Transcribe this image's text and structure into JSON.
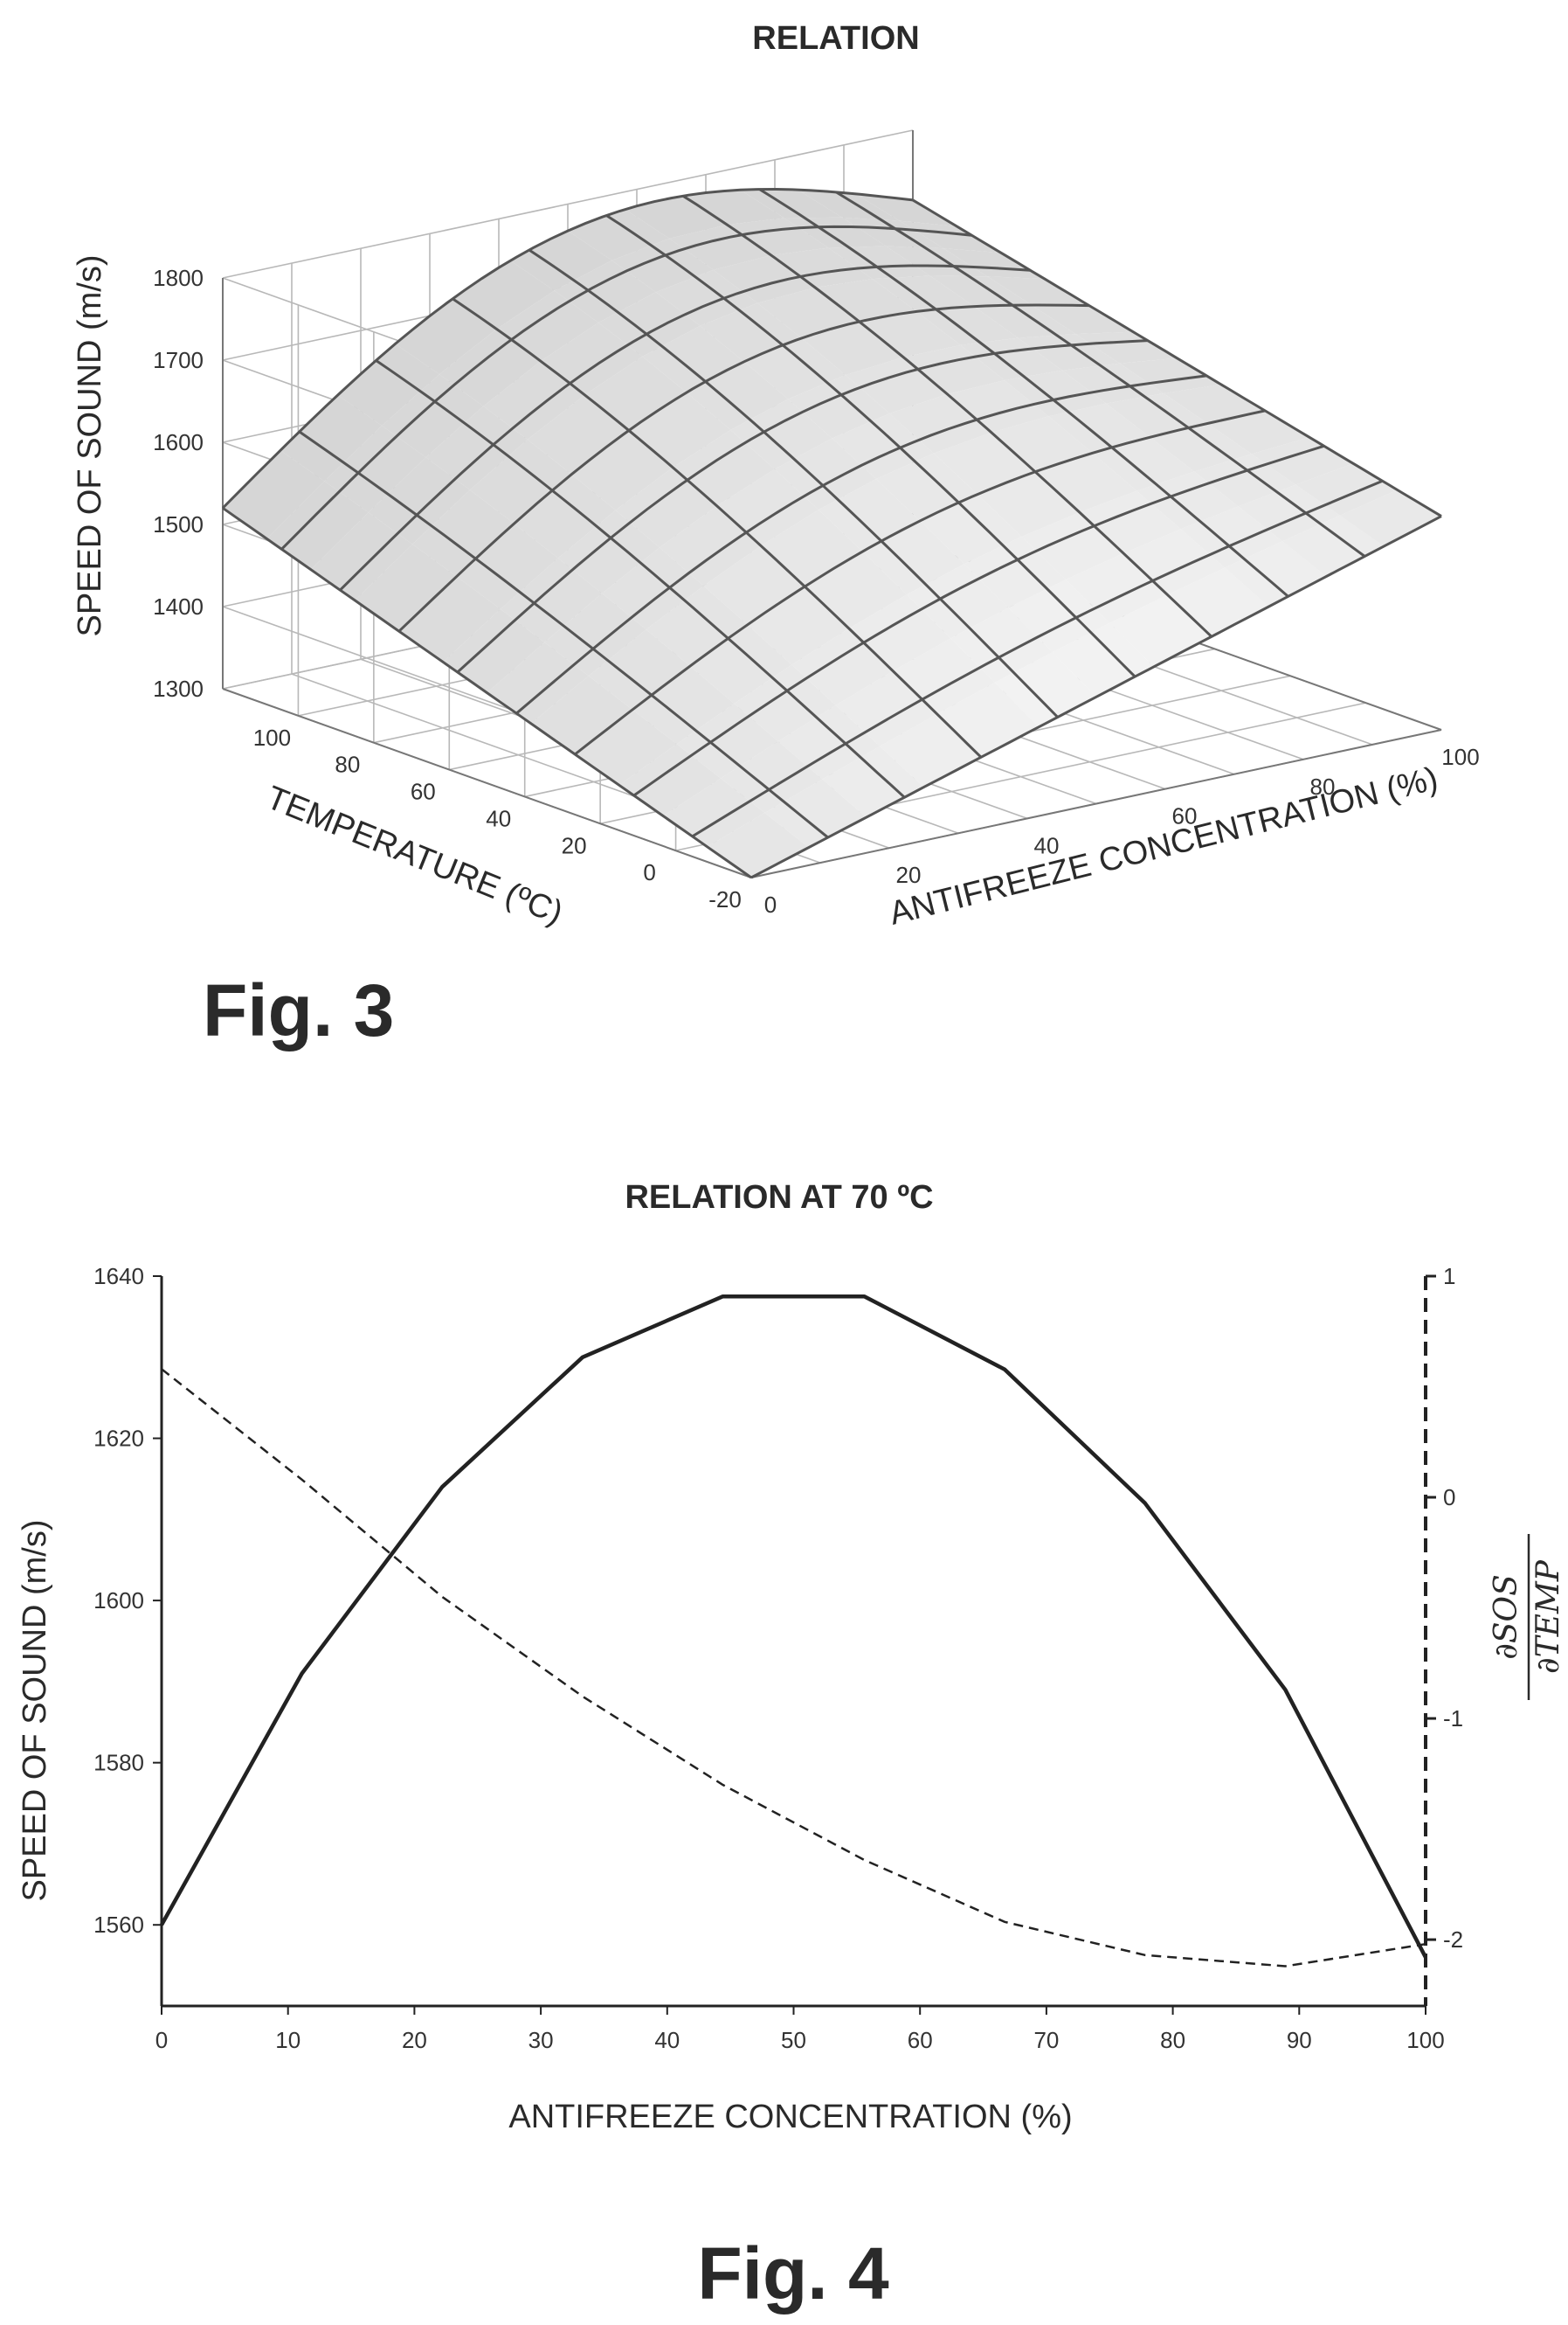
{
  "chart_data": [
    {
      "type": "surface",
      "title": "RELATION",
      "xlabel": "ANTIFREEZE CONCENTRATION (%)",
      "ylabel": "TEMPERATURE (ºC)",
      "zlabel": "SPEED OF SOUND (m/s)",
      "x_ticks": [
        "0",
        "20",
        "40",
        "60",
        "80",
        "100"
      ],
      "y_ticks": [
        "-20",
        "0",
        "20",
        "40",
        "60",
        "80",
        "100"
      ],
      "z_ticks": [
        "1300",
        "1400",
        "1500",
        "1600",
        "1700",
        "1800"
      ],
      "xlim": [
        0,
        100
      ],
      "ylim": [
        -20,
        120
      ],
      "zlim": [
        1300,
        1800
      ],
      "grid": true,
      "surface_corners": [
        {
          "concentration": 0,
          "temperature": -20,
          "speed": 1300
        },
        {
          "concentration": 0,
          "temperature": 120,
          "speed": 1520
        },
        {
          "concentration": 100,
          "temperature": -20,
          "speed": 1560
        },
        {
          "concentration": 100,
          "temperature": 120,
          "speed": 1715
        }
      ],
      "caption": "Fig. 3"
    },
    {
      "type": "line",
      "title": "RELATION AT 70 ºC",
      "xlabel": "ANTIFREEZE  CONCENTRATION (%)",
      "ylabel": "SPEED OF SOUND (m/s)",
      "y2label_numerator": "∂SOS",
      "y2label_denominator": "∂TEMP",
      "x_ticks": [
        "0",
        "10",
        "20",
        "30",
        "40",
        "50",
        "60",
        "70",
        "80",
        "90",
        "100"
      ],
      "y_ticks": [
        "1560",
        "1580",
        "1600",
        "1620",
        "1640"
      ],
      "y2_ticks": [
        "-2",
        "-1",
        "0",
        "1"
      ],
      "xlim": [
        0,
        100
      ],
      "ylim": [
        1550,
        1640
      ],
      "y2lim": [
        -2.3,
        1
      ],
      "grid": false,
      "series": [
        {
          "axis": "left",
          "style": "solid",
          "x": [
            0,
            11.1,
            22.2,
            33.3,
            44.4,
            55.6,
            66.7,
            77.8,
            88.9,
            100
          ],
          "values": [
            1560,
            1591,
            1614,
            1630,
            1637.5,
            1637.5,
            1628.5,
            1612,
            1589,
            1556
          ]
        },
        {
          "axis": "right",
          "style": "dashed",
          "x": [
            0,
            11.1,
            22.2,
            33.3,
            44.4,
            55.6,
            66.7,
            77.8,
            88.9,
            100
          ],
          "values": [
            0.58,
            0.08,
            -0.45,
            -0.9,
            -1.3,
            -1.64,
            -1.92,
            -2.07,
            -2.12,
            -2.02
          ]
        }
      ],
      "caption": "Fig. 4"
    }
  ]
}
